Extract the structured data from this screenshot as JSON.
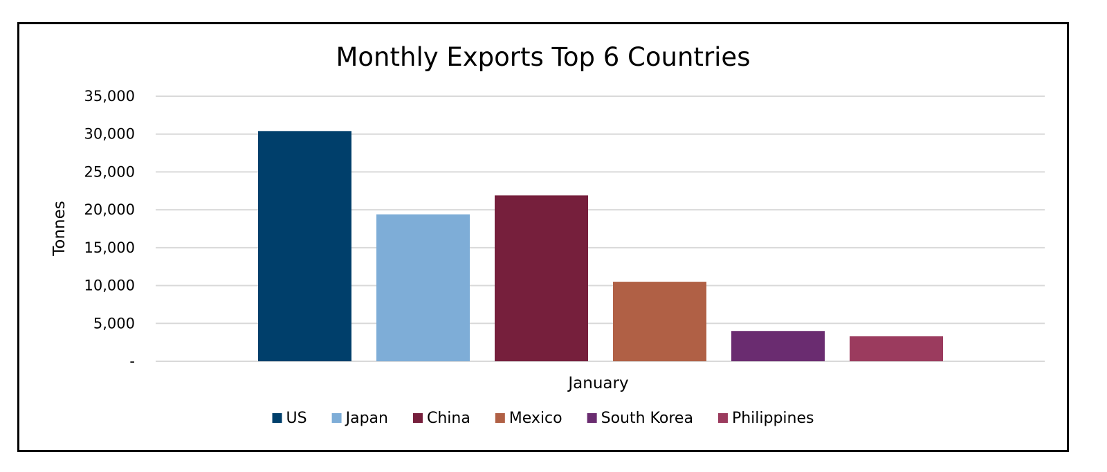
{
  "chart_data": {
    "type": "bar",
    "title": "Monthly Exports Top 6 Countries",
    "xlabel": "January",
    "ylabel": "Tonnes",
    "category": "January",
    "ylim": [
      0,
      35000
    ],
    "yticks": [
      0,
      5000,
      10000,
      15000,
      20000,
      25000,
      30000,
      35000
    ],
    "ytick_labels": [
      "-",
      "5,000",
      "10,000",
      "15,000",
      "20,000",
      "25,000",
      "30,000",
      "35,000"
    ],
    "grid": true,
    "legend_position": "bottom",
    "series": [
      {
        "name": "US",
        "value": 30400,
        "color": "#003f6b"
      },
      {
        "name": "Japan",
        "value": 19400,
        "color": "#7eadd7"
      },
      {
        "name": "China",
        "value": 21900,
        "color": "#761f3c"
      },
      {
        "name": "Mexico",
        "value": 10500,
        "color": "#b06045"
      },
      {
        "name": "South Korea",
        "value": 4000,
        "color": "#6a2c70"
      },
      {
        "name": "Philippines",
        "value": 3300,
        "color": "#9b3b5e"
      }
    ]
  }
}
